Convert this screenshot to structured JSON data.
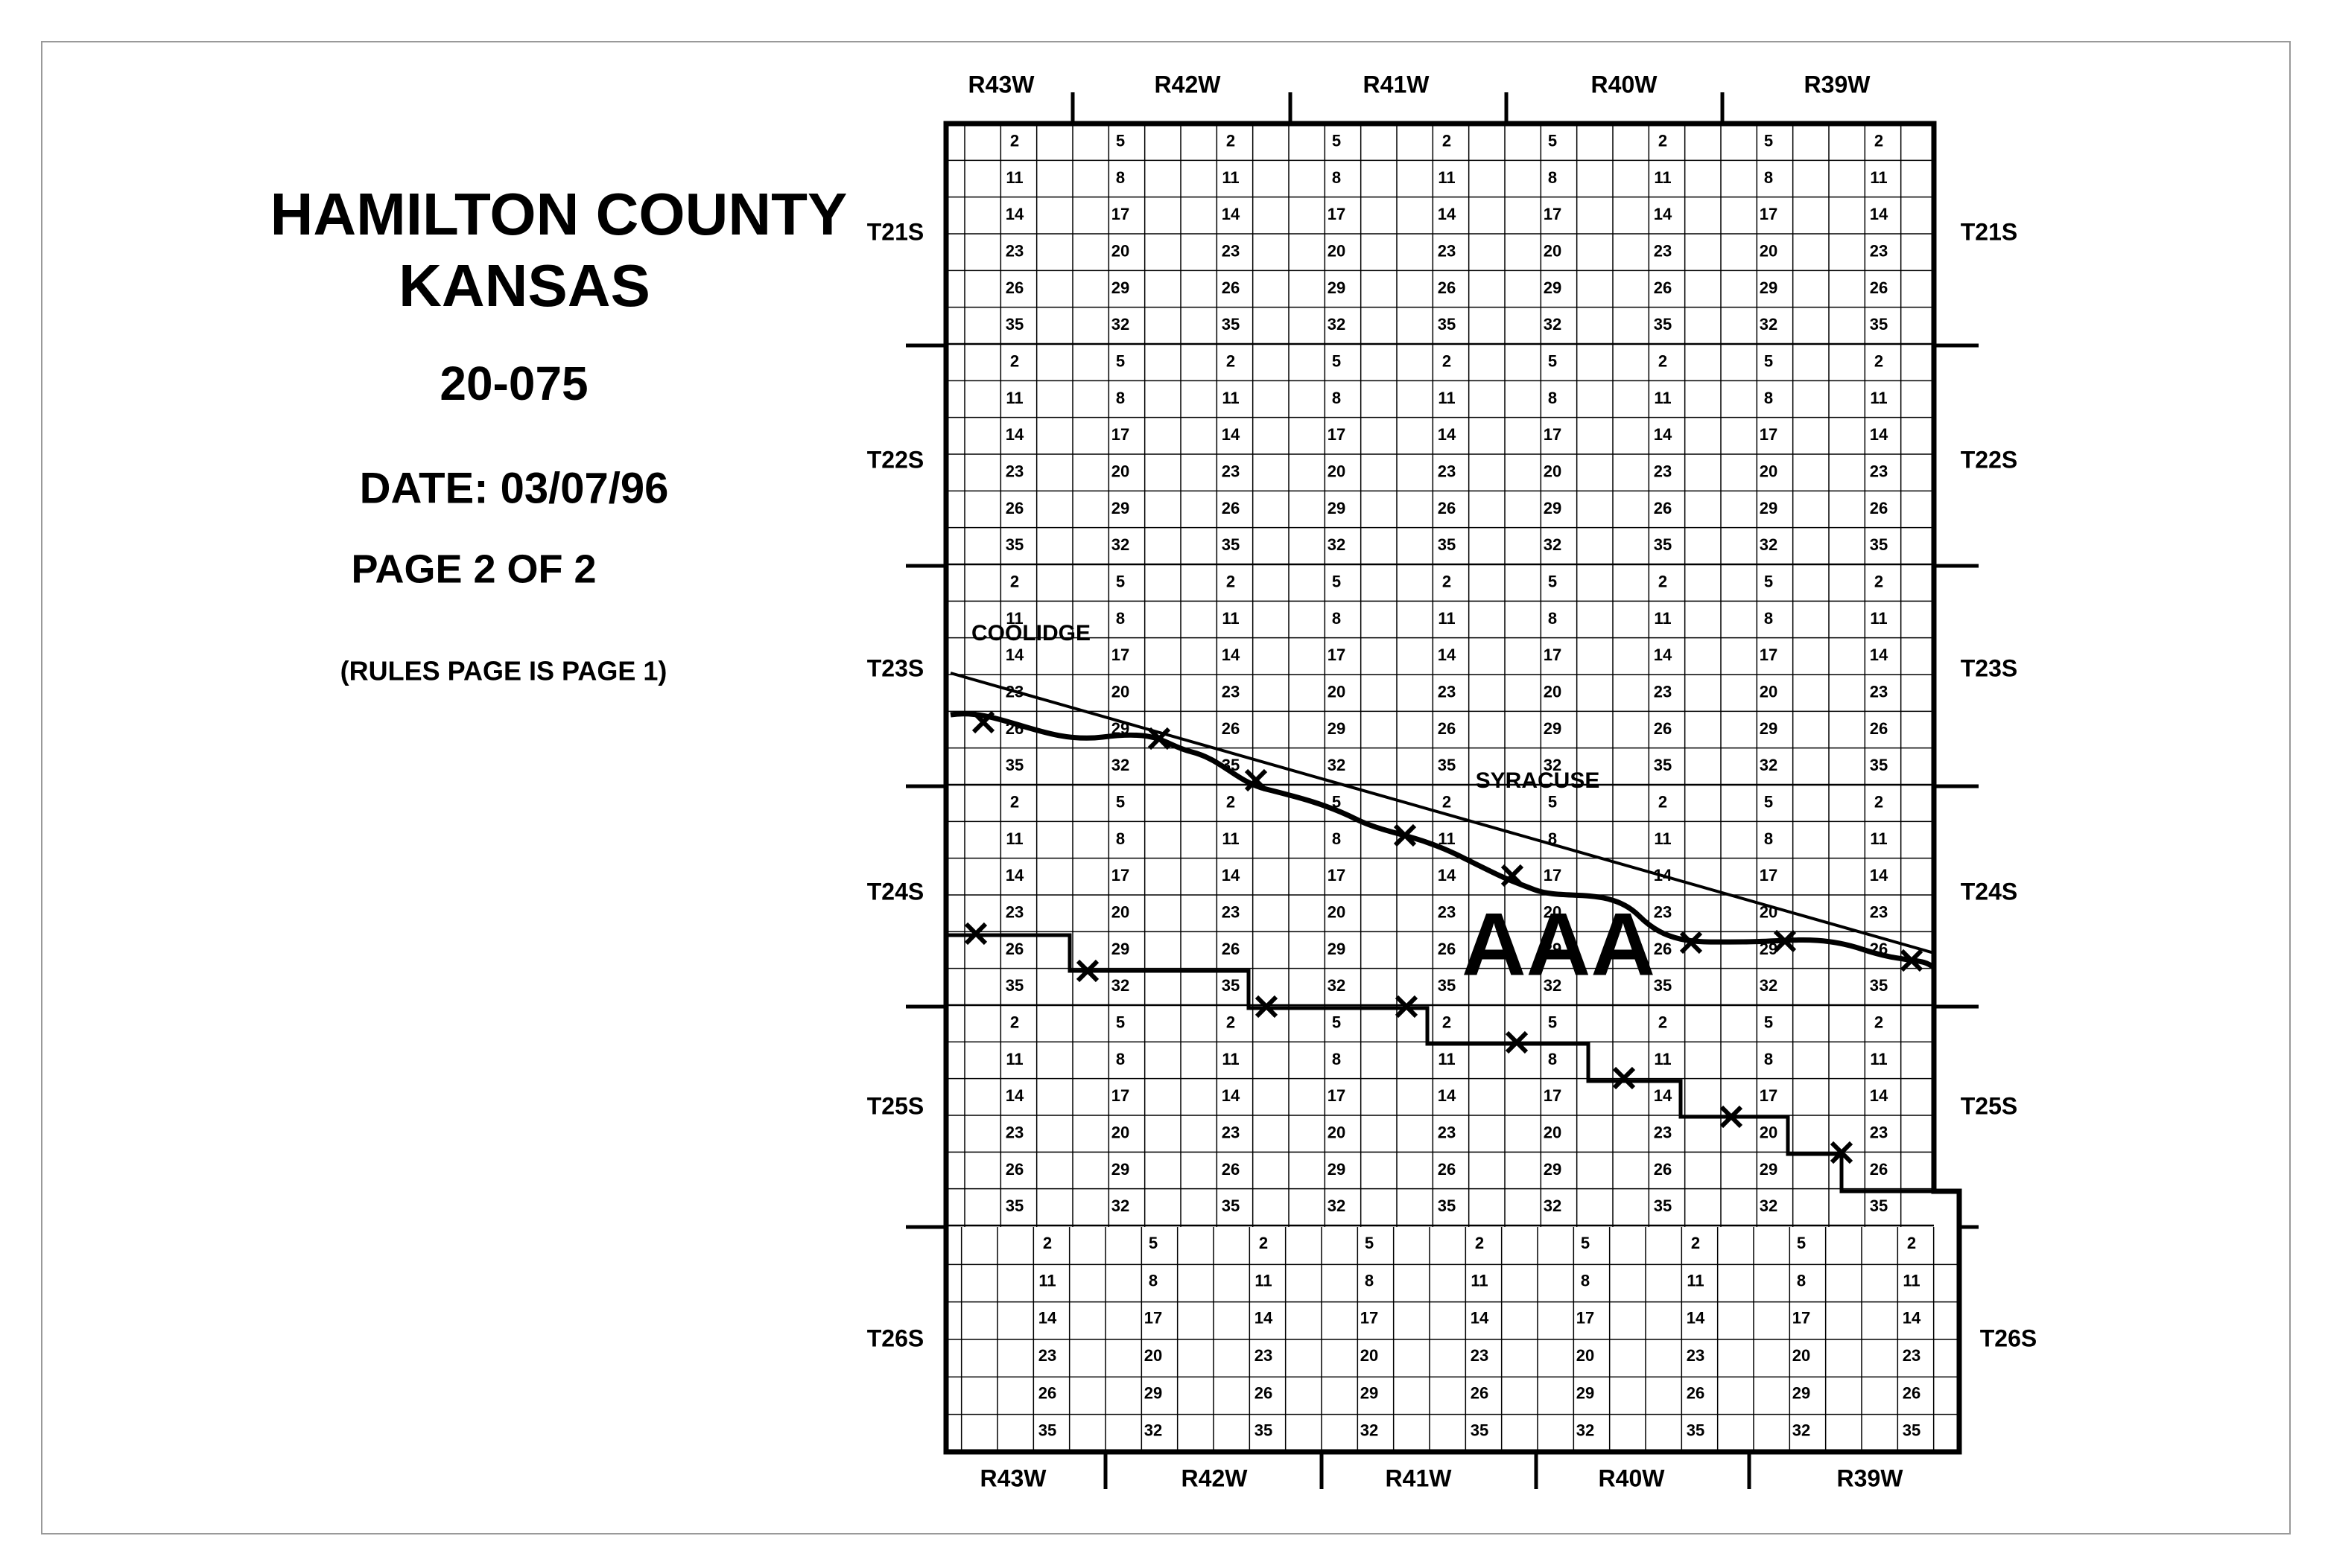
{
  "header": {
    "title": "HAMILTON COUNTY",
    "subtitle": "KANSAS",
    "code": "20-075",
    "date": "DATE: 03/07/96",
    "page": "PAGE 2 OF 2",
    "note": "(RULES PAGE IS PAGE 1)"
  },
  "ranges": [
    "R43W",
    "R42W",
    "R41W",
    "R40W",
    "R39W"
  ],
  "townships": [
    "T21S",
    "T22S",
    "T23S",
    "T24S",
    "T25S",
    "T26S"
  ],
  "sections": {
    "west_column": [
      5,
      8,
      17,
      20,
      29,
      32
    ],
    "east_column": [
      2,
      11,
      14,
      23,
      26,
      35
    ]
  },
  "towns": [
    "COOLIDGE",
    "SYRACUSE"
  ],
  "area_label": "AAA"
}
